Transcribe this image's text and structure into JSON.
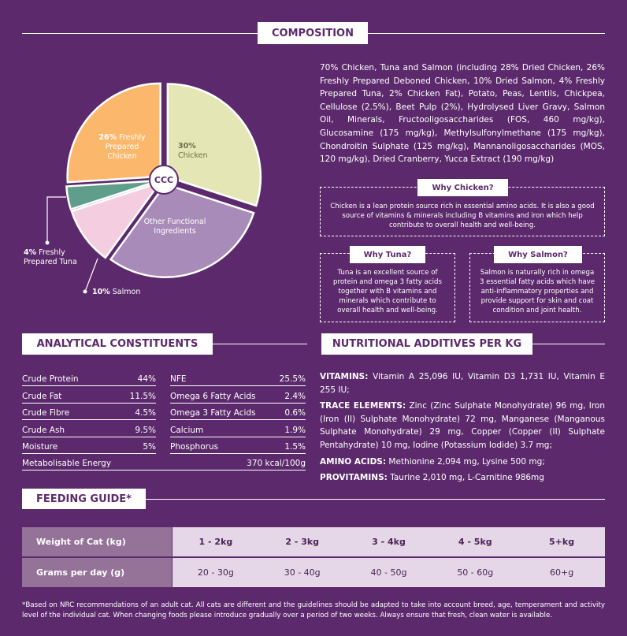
{
  "composition": {
    "heading": "COMPOSITION",
    "description": "70% Chicken, Tuna and Salmon (including 28% Dried Chicken, 26% Freshly Prepared Deboned Chicken, 10% Dried Salmon, 4% Freshly Prepared Tuna, 2% Chicken Fat), Potato, Peas, Lentils, Chickpea, Cellulose (2.5%), Beet Pulp (2%), Hydrolysed Liver Gravy, Salmon Oil, Minerals, Fructooligosaccharides (FOS, 460 mg/kg), Glucosamine (175 mg/kg), Methylsulfonylmethane (175 mg/kg), Chondroitin Sulphate (125 mg/kg), Mannanoligosaccharides (MOS, 120 mg/kg), Dried Cranberry, Yucca Extract (190 mg/kg)",
    "center_label": "CCC",
    "pie": {
      "type": "pie",
      "slices": [
        {
          "name": "Chicken",
          "value": 30,
          "value_label": "30%",
          "color": "#e5e6b5"
        },
        {
          "name": "Other Functional Ingredients",
          "value": 30,
          "color": "#a98bb9"
        },
        {
          "name": "Salmon",
          "value": 10,
          "value_label": "10%",
          "color": "#f4cee0"
        },
        {
          "name": "Freshly Prepared Tuna",
          "value": 4,
          "value_label": "4%",
          "color": "#5e9e8a"
        },
        {
          "name": "Freshly Prepared Chicken",
          "value": 26,
          "value_label": "26%",
          "color": "#fbb86c"
        }
      ]
    }
  },
  "why": [
    {
      "title": "Why Chicken?",
      "text": "Chicken is a lean protein source rich in essential amino acids. It is also a good source of vitamins & minerals including B vitamins and iron which help contribute to overall health and well-being."
    },
    {
      "title": "Why Tuna?",
      "text": "Tuna is an excellent source of protein and omega 3 fatty acids together with B vitamins and minerals which contribute to overall health and well-being."
    },
    {
      "title": "Why Salmon?",
      "text": "Salmon is naturally rich in omega 3 essential fatty acids which have anti-inflammatory properties and provide support for skin and coat condition and joint health."
    }
  ],
  "analytical": {
    "heading": "ANALYTICAL CONSTITUENTS",
    "left": [
      [
        "Crude Protein",
        "44%"
      ],
      [
        "Crude Fat",
        "11.5%"
      ],
      [
        "Crude Fibre",
        "4.5%"
      ],
      [
        "Crude Ash",
        "9.5%"
      ],
      [
        "Moisture",
        "5%"
      ]
    ],
    "right": [
      [
        "NFE",
        "25.5%"
      ],
      [
        "Omega 6 Fatty Acids",
        "2.4%"
      ],
      [
        "Omega 3 Fatty Acids",
        "0.6%"
      ],
      [
        "Calcium",
        "1.9%"
      ],
      [
        "Phosphorus",
        "1.5%"
      ]
    ],
    "energy": [
      "Metabolisable Energy",
      "370 kcal/100g"
    ]
  },
  "additives": {
    "heading": "NUTRITIONAL ADDITIVES PER KG",
    "items": [
      {
        "label": "VITAMINS:",
        "text": "Vitamin A 25,096 IU, Vitamin D3 1,731 IU, Vitamin E 255 IU;"
      },
      {
        "label": "TRACE ELEMENTS:",
        "text": "Zinc (Zinc Sulphate Monohydrate) 96 mg, Iron (Iron (II) Sulphate Monohydrate) 72 mg, Manganese (Manganous Sulphate Monohydrate) 29 mg, Copper (Copper (II) Sulphate Pentahydrate) 10 mg, Iodine (Potassium Iodide) 3.7 mg;"
      },
      {
        "label": "AMINO ACIDS:",
        "text": "Methionine 2,094 mg, Lysine 500 mg;"
      },
      {
        "label": "PROVITAMINS:",
        "text": "Taurine 2,010 mg, L-Carnitine 986mg"
      }
    ]
  },
  "feeding": {
    "heading": "FEEDING GUIDE*",
    "rows": [
      [
        "Weight of Cat (kg)",
        "1 - 2kg",
        "2 - 3kg",
        "3 - 4kg",
        "4 - 5kg",
        "5+kg"
      ],
      [
        "Grams per day (g)",
        "20 - 30g",
        "30 - 40g",
        "40 - 50g",
        "50 - 60g",
        "60+g"
      ]
    ],
    "footnote": "*Based on NRC recommendations of an adult cat. All cats are different and the guidelines should be adapted to take into account breed, age, temperament and activity level of the individual cat. When changing foods please introduce gradually over a period of two weeks. Always ensure that fresh, clean water is available."
  }
}
